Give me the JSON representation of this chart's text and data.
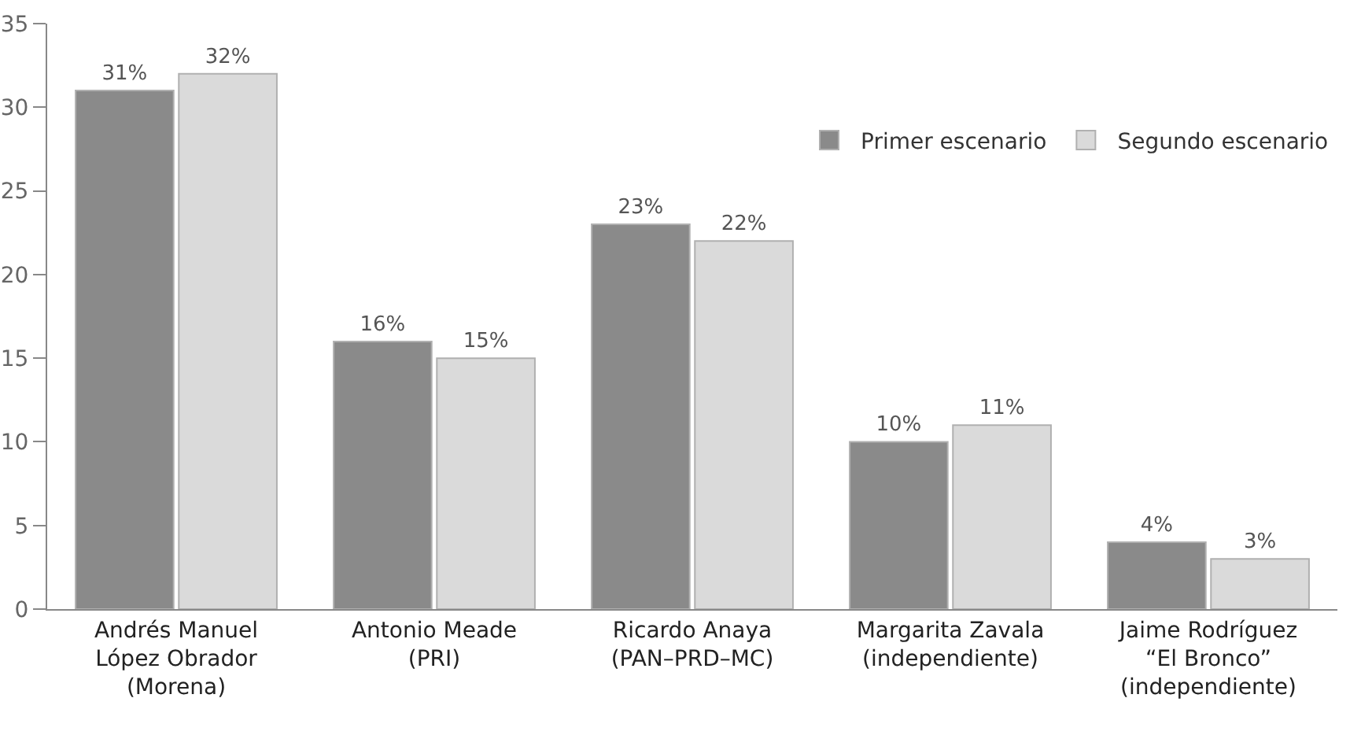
{
  "chart_data": {
    "type": "bar",
    "categories": [
      "Andrés Manuel\nLópez Obrador\n(Morena)",
      "Antonio Meade\n(PRI)",
      "Ricardo Anaya\n(PAN–PRD–MC)",
      "Margarita Zavala\n(independiente)",
      "Jaime Rodríguez\n“El Bronco”\n(independiente)"
    ],
    "series": [
      {
        "name": "Primer escenario",
        "color": "#8a8a8a",
        "values": [
          31,
          16,
          23,
          10,
          4
        ],
        "value_labels": [
          "31%",
          "16%",
          "23%",
          "10%",
          "4%"
        ]
      },
      {
        "name": "Segundo escenario",
        "color": "#dadada",
        "values": [
          32,
          15,
          22,
          11,
          3
        ],
        "value_labels": [
          "32%",
          "15%",
          "22%",
          "11%",
          "3%"
        ]
      }
    ],
    "ylim": [
      0,
      35
    ],
    "yticks": [
      0,
      5,
      10,
      15,
      20,
      25,
      30,
      35
    ],
    "grid": false,
    "legend": "top right"
  }
}
